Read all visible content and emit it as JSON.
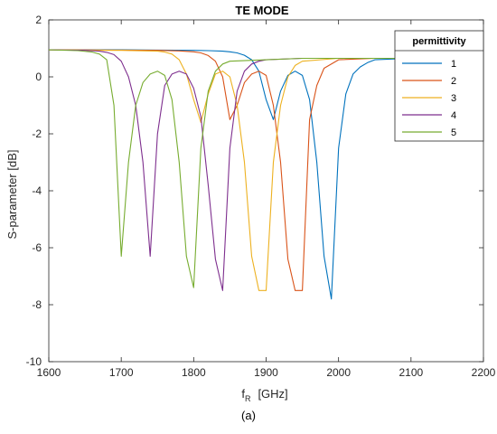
{
  "chart_data": {
    "type": "line",
    "title": "TE MODE",
    "xlabel_main": "f",
    "xlabel_sub": "R",
    "xlabel_unit": "[GHz]",
    "ylabel": "S-parameter [dB]",
    "xlim": [
      1600,
      2200
    ],
    "ylim": [
      -10,
      2
    ],
    "x_ticks": [
      1600,
      1700,
      1800,
      1900,
      2000,
      2100,
      2200
    ],
    "y_ticks": [
      -10,
      -8,
      -6,
      -4,
      -2,
      0,
      2
    ],
    "grid": false,
    "legend_title": "permittivity",
    "legend_position": "top-right",
    "caption": "(a)",
    "colors": [
      "#0072BD",
      "#D95319",
      "#EDB120",
      "#7E2F8E",
      "#77AC30"
    ],
    "series": [
      {
        "name": "1",
        "x": [
          1600,
          1700,
          1750,
          1800,
          1820,
          1840,
          1850,
          1860,
          1870,
          1880,
          1890,
          1900,
          1910,
          1920,
          1930,
          1940,
          1950,
          1960,
          1970,
          1980,
          1990,
          2000,
          2010,
          2020,
          2030,
          2040,
          2050,
          2100,
          2150,
          2200
        ],
        "y": [
          0.95,
          0.95,
          0.94,
          0.93,
          0.92,
          0.9,
          0.88,
          0.84,
          0.76,
          0.6,
          0.2,
          -0.8,
          -1.5,
          -0.5,
          0.05,
          0.2,
          0.05,
          -0.8,
          -3.0,
          -6.3,
          -7.8,
          -2.5,
          -0.6,
          0.1,
          0.35,
          0.5,
          0.6,
          0.65,
          0.65,
          0.65
        ]
      },
      {
        "name": "2",
        "x": [
          1600,
          1700,
          1750,
          1780,
          1800,
          1810,
          1820,
          1830,
          1840,
          1850,
          1860,
          1870,
          1880,
          1890,
          1900,
          1910,
          1920,
          1930,
          1940,
          1950,
          1960,
          1970,
          1980,
          2000,
          2050,
          2100,
          2200
        ],
        "y": [
          0.95,
          0.94,
          0.93,
          0.91,
          0.88,
          0.84,
          0.75,
          0.55,
          0.0,
          -1.5,
          -1.0,
          -0.2,
          0.1,
          0.2,
          0.05,
          -1.0,
          -3.0,
          -6.4,
          -7.5,
          -7.5,
          -1.5,
          -0.3,
          0.3,
          0.6,
          0.65,
          0.65,
          0.65
        ]
      },
      {
        "name": "3",
        "x": [
          1600,
          1700,
          1750,
          1760,
          1770,
          1780,
          1790,
          1800,
          1810,
          1820,
          1830,
          1840,
          1850,
          1860,
          1870,
          1880,
          1890,
          1900,
          1910,
          1920,
          1930,
          1940,
          1950,
          2000,
          2050,
          2100,
          2200
        ],
        "y": [
          0.95,
          0.93,
          0.9,
          0.87,
          0.8,
          0.6,
          0.1,
          -0.8,
          -1.6,
          -0.6,
          0.1,
          0.2,
          0.0,
          -1.0,
          -3.0,
          -6.3,
          -7.5,
          -7.5,
          -3.0,
          -1.0,
          0.0,
          0.4,
          0.55,
          0.65,
          0.65,
          0.65,
          0.65
        ]
      },
      {
        "name": "4",
        "x": [
          1600,
          1650,
          1670,
          1680,
          1690,
          1700,
          1710,
          1720,
          1730,
          1740,
          1750,
          1760,
          1770,
          1780,
          1790,
          1800,
          1810,
          1820,
          1830,
          1840,
          1850,
          1860,
          1870,
          1880,
          1890,
          1900,
          1950,
          2000,
          2200
        ],
        "y": [
          0.95,
          0.93,
          0.9,
          0.86,
          0.78,
          0.55,
          0.0,
          -1.0,
          -3.0,
          -6.3,
          -2.0,
          -0.3,
          0.1,
          0.2,
          0.1,
          -0.4,
          -1.4,
          -3.8,
          -6.4,
          -7.5,
          -2.5,
          -0.5,
          0.2,
          0.45,
          0.55,
          0.6,
          0.65,
          0.65,
          0.65
        ]
      },
      {
        "name": "5",
        "x": [
          1600,
          1640,
          1660,
          1670,
          1680,
          1690,
          1700,
          1710,
          1720,
          1730,
          1740,
          1750,
          1760,
          1770,
          1780,
          1790,
          1800,
          1810,
          1820,
          1830,
          1840,
          1850,
          1900,
          1950,
          2000,
          2200
        ],
        "y": [
          0.95,
          0.92,
          0.87,
          0.8,
          0.6,
          -1.0,
          -6.3,
          -3.0,
          -1.0,
          -0.2,
          0.1,
          0.2,
          0.05,
          -0.8,
          -3.0,
          -6.3,
          -7.4,
          -2.5,
          -0.5,
          0.2,
          0.45,
          0.55,
          0.6,
          0.65,
          0.65,
          0.65
        ]
      }
    ]
  }
}
